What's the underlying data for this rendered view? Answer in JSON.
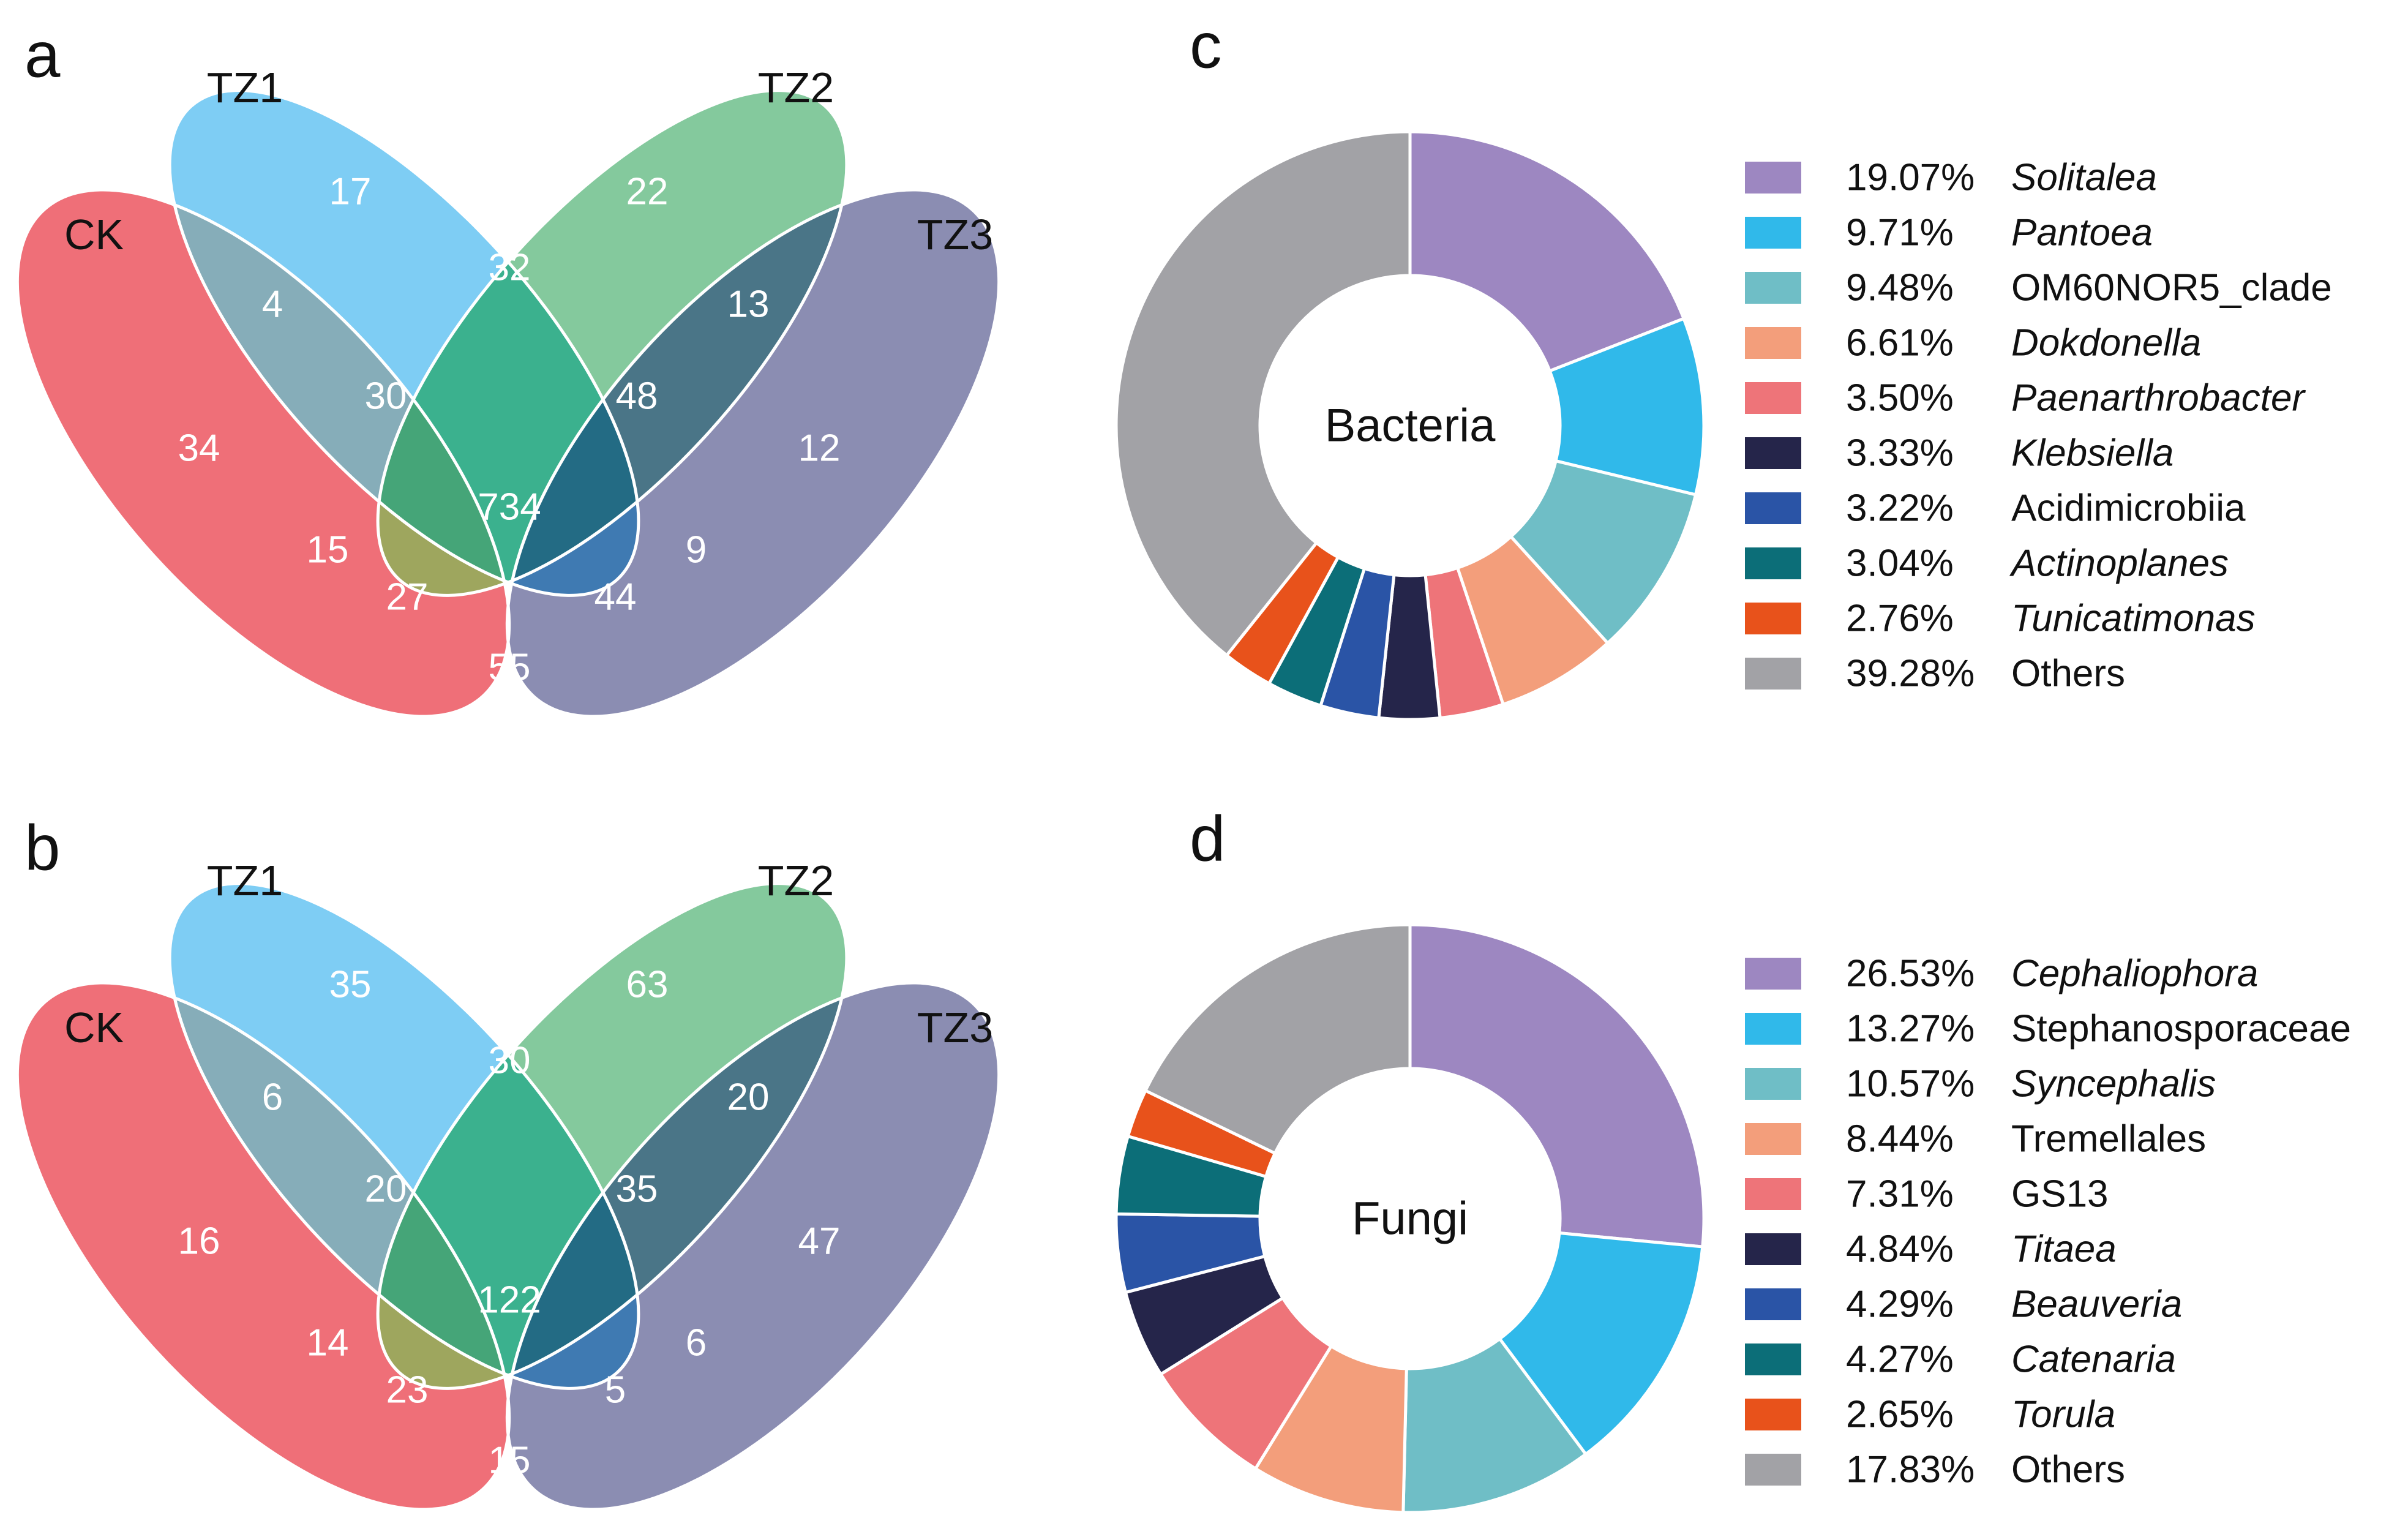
{
  "panels": {
    "a": "a",
    "b": "b",
    "c": "c",
    "d": "d"
  },
  "colors": {
    "CK": "#ef6f78",
    "TZ1": "#7ecdf4",
    "TZ2": "#84c99d",
    "TZ3": "#8b8db2",
    "CK_TZ1": "#86adb9",
    "TZ1_TZ2": "#3bb18e",
    "TZ2_TZ3": "#4a7587",
    "CK_TZ3": "#8b5377",
    "CK_TZ1_TZ2": "#45a578",
    "TZ1_TZ2_TZ3": "#236b84",
    "CK_TZ1_TZ3": "#5a5f6e",
    "CK_TZ2_TZ3": "#4d5e8f",
    "CK_TZ2": "#9ea65e",
    "TZ1_TZ3": "#3f7ab2",
    "ALL": "#2a5869"
  },
  "chart_data": [
    {
      "type": "venn",
      "panel": "a",
      "sets": [
        "CK",
        "TZ1",
        "TZ2",
        "TZ3"
      ],
      "regions": {
        "CK": "34",
        "TZ1": "17",
        "TZ2": "22",
        "TZ3": "12",
        "CK_TZ1": "4",
        "TZ1_TZ2": "32",
        "TZ2_TZ3": "13",
        "CK_TZ1_TZ2": "30",
        "TZ1_TZ2_TZ3": "48",
        "ALL": "734",
        "CK_TZ2": "15",
        "TZ1_TZ3": "9",
        "CK_TZ1_TZ3": "27",
        "CK_TZ2_TZ3": "44",
        "CK_TZ3": "55"
      }
    },
    {
      "type": "venn",
      "panel": "b",
      "sets": [
        "CK",
        "TZ1",
        "TZ2",
        "TZ3"
      ],
      "regions": {
        "CK": "16",
        "TZ1": "35",
        "TZ2": "63",
        "TZ3": "47",
        "CK_TZ1": "6",
        "TZ1_TZ2": "30",
        "TZ2_TZ3": "20",
        "CK_TZ1_TZ2": "20",
        "TZ1_TZ2_TZ3": "35",
        "ALL": "122",
        "CK_TZ2": "14",
        "TZ1_TZ3": "6",
        "CK_TZ1_TZ3": "23",
        "CK_TZ2_TZ3": "5",
        "CK_TZ3": "15"
      }
    },
    {
      "type": "pie",
      "panel": "c",
      "title": "Bacteria",
      "slices": [
        {
          "label": "19.07%",
          "name": "Solitalea",
          "value": 19.07,
          "italic": true,
          "color": "#9d87c1"
        },
        {
          "label": "9.71%",
          "name": "Pantoea",
          "value": 9.71,
          "italic": true,
          "color": "#30b9ea"
        },
        {
          "label": "9.48%",
          "name": "OM60NOR5_clade",
          "value": 9.48,
          "italic": false,
          "color": "#6fbec6"
        },
        {
          "label": "6.61%",
          "name": "Dokdonella",
          "value": 6.61,
          "italic": true,
          "color": "#f39e7b"
        },
        {
          "label": "3.50%",
          "name": "Paenarthrobacter",
          "value": 3.5,
          "italic": true,
          "color": "#ee7479"
        },
        {
          "label": "3.33%",
          "name": "Klebsiella",
          "value": 3.33,
          "italic": true,
          "color": "#25254a"
        },
        {
          "label": "3.22%",
          "name": "Acidimicrobiia",
          "value": 3.22,
          "italic": false,
          "color": "#2a54a6"
        },
        {
          "label": "3.04%",
          "name": "Actinoplanes",
          "value": 3.04,
          "italic": true,
          "color": "#0c6e78"
        },
        {
          "label": "2.76%",
          "name": "Tunicatimonas",
          "value": 2.76,
          "italic": true,
          "color": "#e8521b"
        },
        {
          "label": "39.28%",
          "name": "Others",
          "value": 39.28,
          "italic": false,
          "color": "#a2a2a6"
        }
      ]
    },
    {
      "type": "pie",
      "panel": "d",
      "title": "Fungi",
      "slices": [
        {
          "label": "26.53%",
          "name": "Cephaliophora",
          "value": 26.53,
          "italic": true,
          "color": "#9d87c1"
        },
        {
          "label": "13.27%",
          "name": "Stephanosporaceae",
          "value": 13.27,
          "italic": false,
          "color": "#30b9ea"
        },
        {
          "label": "10.57%",
          "name": "Syncephalis",
          "value": 10.57,
          "italic": true,
          "color": "#6fbec6"
        },
        {
          "label": "8.44%",
          "name": "Tremellales",
          "value": 8.44,
          "italic": false,
          "color": "#f39e7b"
        },
        {
          "label": "7.31%",
          "name": "GS13",
          "value": 7.31,
          "italic": false,
          "color": "#ee7479"
        },
        {
          "label": "4.84%",
          "name": "Titaea",
          "value": 4.84,
          "italic": true,
          "color": "#25254a"
        },
        {
          "label": "4.29%",
          "name": "Beauveria",
          "value": 4.29,
          "italic": true,
          "color": "#2a54a6"
        },
        {
          "label": "4.27%",
          "name": "Catenaria",
          "value": 4.27,
          "italic": true,
          "color": "#0c6e78"
        },
        {
          "label": "2.65%",
          "name": "Torula",
          "value": 2.65,
          "italic": true,
          "color": "#e8521b"
        },
        {
          "label": "17.83%",
          "name": "Others",
          "value": 17.83,
          "italic": false,
          "color": "#a2a2a6"
        }
      ]
    }
  ]
}
